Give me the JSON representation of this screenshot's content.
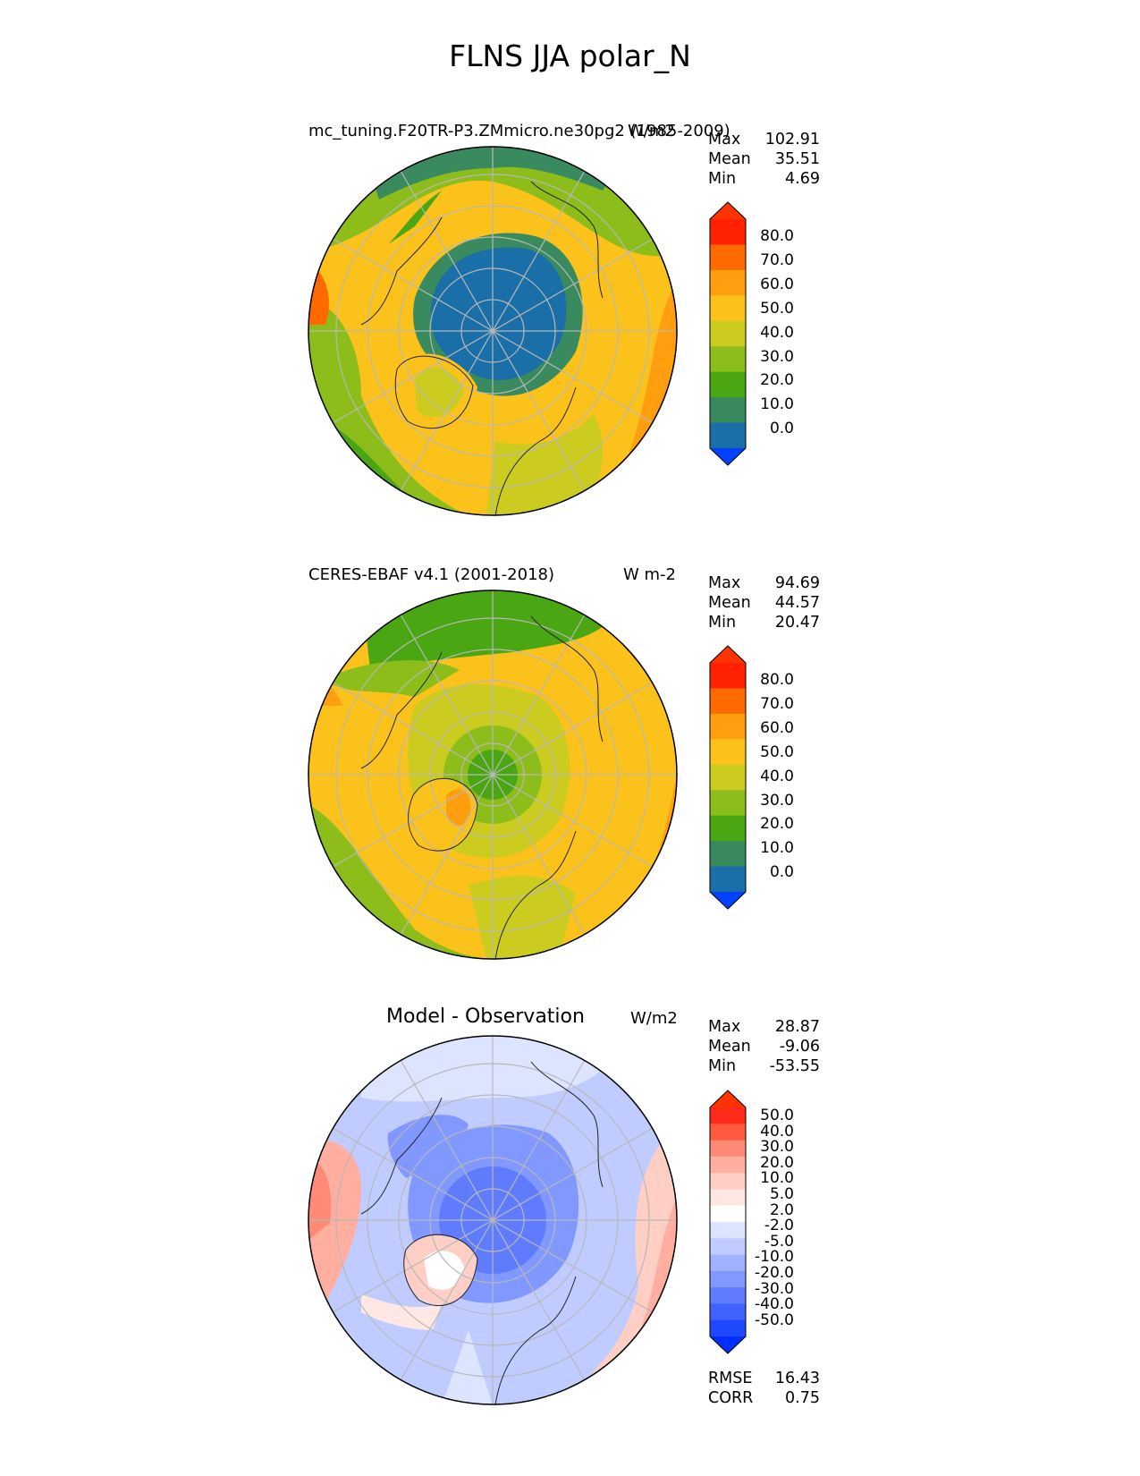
{
  "figure_title": "FLNS JJA polar_N",
  "panels": [
    {
      "title": "mc_tuning.F20TR-P3.ZMmicro.ne30pg2 (1985-2009)",
      "units": "W/m2",
      "stats": {
        "max_label": "Max",
        "max": "102.91",
        "mean_label": "Mean",
        "mean": "35.51",
        "min_label": "Min",
        "min": "4.69"
      },
      "colorbar": {
        "labels": [
          "80.0",
          "70.0",
          "60.0",
          "50.0",
          "40.0",
          "30.0",
          "20.0",
          "10.0",
          "0.0"
        ],
        "colors": [
          "#ff3300",
          "#ff2200",
          "#ff6a00",
          "#ff9f10",
          "#fcc21c",
          "#cccc20",
          "#8cbd1a",
          "#4aa612",
          "#3a8a60",
          "#1a6fa8",
          "#0040ff"
        ]
      }
    },
    {
      "title": "CERES-EBAF v4.1 (2001-2018)",
      "units": "W m-2",
      "stats": {
        "max_label": "Max",
        "max": "94.69",
        "mean_label": "Mean",
        "mean": "44.57",
        "min_label": "Min",
        "min": "20.47"
      },
      "colorbar": {
        "labels": [
          "80.0",
          "70.0",
          "60.0",
          "50.0",
          "40.0",
          "30.0",
          "20.0",
          "10.0",
          "0.0"
        ],
        "colors": [
          "#ff3300",
          "#ff2200",
          "#ff6a00",
          "#ff9f10",
          "#fcc21c",
          "#cccc20",
          "#8cbd1a",
          "#4aa612",
          "#3a8a60",
          "#1a6fa8",
          "#0040ff"
        ]
      }
    },
    {
      "title": "Model - Observation",
      "units": "W/m2",
      "stats": {
        "max_label": "Max",
        "max": "28.87",
        "mean_label": "Mean",
        "mean": "-9.06",
        "min_label": "Min",
        "min": "-53.55"
      },
      "colorbar": {
        "labels": [
          "50.0",
          "40.0",
          "30.0",
          "20.0",
          "10.0",
          "5.0",
          "2.0",
          "-2.0",
          "-5.0",
          "-10.0",
          "-20.0",
          "-30.0",
          "-40.0",
          "-50.0"
        ],
        "colors": [
          "#ff3300",
          "#ff2a1a",
          "#ff5a40",
          "#ff8a75",
          "#ffaea0",
          "#ffcfc6",
          "#ffe8e4",
          "#ffffff",
          "#dde4ff",
          "#c0ccff",
          "#a0b2ff",
          "#8098ff",
          "#5f7cff",
          "#4062ff",
          "#2048ff",
          "#0030ff"
        ]
      },
      "rmse_label": "RMSE",
      "rmse": "16.43",
      "corr_label": "CORR",
      "corr": "0.75"
    }
  ]
}
